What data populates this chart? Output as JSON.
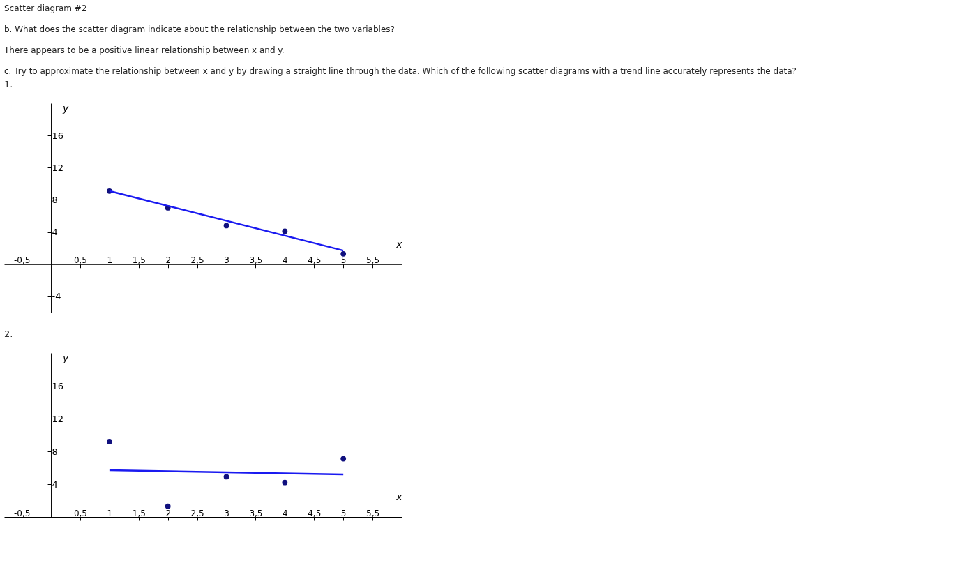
{
  "chart_data": [
    {
      "type": "scatter",
      "title": "1.",
      "annotations": [
        "Scatter diagram #2",
        "b. What does the scatter diagram indicate about the relationship between the two variables?",
        "There appears to be a positive linear relationship between x and y.",
        "c. Try to approximate the relationship between x and y by drawing a straight line through the data. Which of the following scatter diagrams with a trend line accurately represents the data?"
      ],
      "xlabel": "x",
      "ylabel": "y",
      "xlim": [
        -0.8,
        6
      ],
      "ylim": [
        -6,
        20
      ],
      "xticks": [
        {
          "value": -0.5,
          "label": "-0,5"
        },
        {
          "value": 0.5,
          "label": "0,5"
        },
        1,
        {
          "value": 1.5,
          "label": "1,5"
        },
        2,
        {
          "value": 2.5,
          "label": "2,5"
        },
        3,
        {
          "value": 3.5,
          "label": "3,5"
        },
        4,
        {
          "value": 4.5,
          "label": "4,5"
        },
        5,
        {
          "value": 5.5,
          "label": "5,5"
        }
      ],
      "yticks": [
        -4,
        4,
        8,
        12,
        16
      ],
      "grid": false,
      "marker": "circle",
      "series": [
        {
          "color": "#10107e",
          "x": [
            1,
            2,
            3,
            4,
            5
          ],
          "values": [
            9.1,
            7.0,
            4.8,
            4.1,
            1.3
          ]
        },
        {
          "type": "line",
          "marker": "none",
          "color": "#1a1af0",
          "x": [
            1,
            5
          ],
          "values": [
            9.1,
            1.7
          ]
        }
      ]
    },
    {
      "type": "scatter",
      "title": "2.",
      "xlabel": "x",
      "ylabel": "y",
      "xlim": [
        -0.8,
        6
      ],
      "ylim": [
        0,
        20
      ],
      "xticks": [
        {
          "value": -0.5,
          "label": "-0,5"
        },
        {
          "value": 0.5,
          "label": "0,5"
        },
        1,
        {
          "value": 1.5,
          "label": "1,5"
        },
        2,
        {
          "value": 2.5,
          "label": "2,5"
        },
        3,
        {
          "value": 3.5,
          "label": "3,5"
        },
        4,
        {
          "value": 4.5,
          "label": "4,5"
        },
        5,
        {
          "value": 5.5,
          "label": "5,5"
        }
      ],
      "yticks": [
        4,
        8,
        12,
        16
      ],
      "grid": false,
      "marker": "circle",
      "series": [
        {
          "color": "#10107e",
          "x": [
            1,
            2,
            3,
            4,
            5
          ],
          "values": [
            9.2,
            1.3,
            4.9,
            4.2,
            7.1
          ]
        },
        {
          "type": "line",
          "marker": "none",
          "color": "#1a1af0",
          "x": [
            1,
            5
          ],
          "values": [
            5.7,
            5.2
          ]
        }
      ]
    }
  ]
}
